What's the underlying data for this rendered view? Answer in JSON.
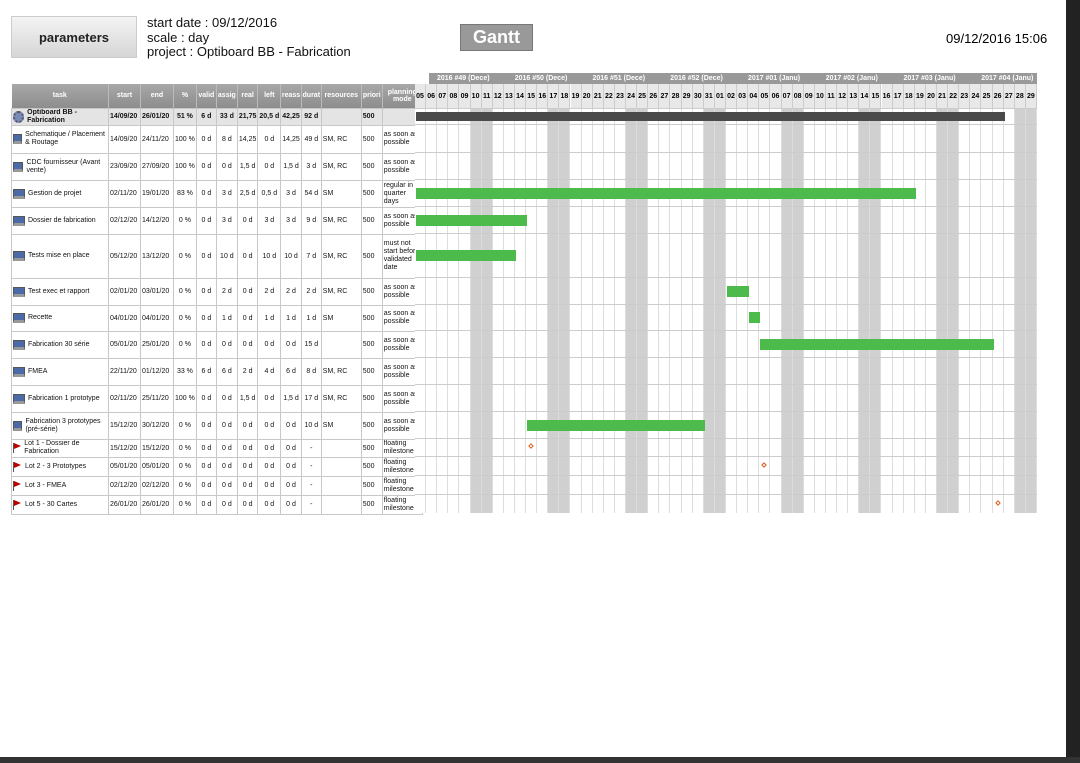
{
  "header": {
    "parameters_label": "parameters",
    "start_date": "start date : 09/12/2016",
    "scale": "scale : day",
    "project": "project : Optiboard BB - Fabrication",
    "gantt_label": "Gantt",
    "datetime": "09/12/2016 15:06"
  },
  "columns": [
    "task",
    "start",
    "end",
    "%",
    "valid",
    "assig",
    "real",
    "left",
    "reass",
    "durat",
    "resources",
    "priori",
    "planning mode"
  ],
  "weeks": [
    "2016 #49 (Dece)",
    "2016 #50 (Dece)",
    "2016 #51 (Dece)",
    "2016 #52 (Dece)",
    "2017 #01 (Janu)",
    "2017 #02 (Janu)",
    "2017 #03 (Janu)",
    "2017 #04 (Janu)"
  ],
  "days": [
    "05",
    "06",
    "07",
    "08",
    "09",
    "10",
    "11",
    "12",
    "13",
    "14",
    "15",
    "16",
    "17",
    "18",
    "19",
    "20",
    "21",
    "22",
    "23",
    "24",
    "25",
    "26",
    "27",
    "28",
    "29",
    "30",
    "31",
    "01",
    "02",
    "03",
    "04",
    "05",
    "06",
    "07",
    "08",
    "09",
    "10",
    "11",
    "12",
    "13",
    "14",
    "15",
    "16",
    "17",
    "18",
    "19",
    "20",
    "21",
    "22",
    "23",
    "24",
    "25",
    "26",
    "27",
    "28",
    "29"
  ],
  "colors": {
    "bar": "#4cbb4c",
    "summary": "#4a4a4a",
    "weekend": "#d0d0d0",
    "milestone": "#e06020"
  },
  "rows": [
    {
      "type": "summary",
      "icon": "gear-icon",
      "task": "Optiboard BB - Fabrication",
      "cells": [
        "14/09/20",
        "26/01/20",
        "51 %",
        "6 d",
        "33 d",
        "21,75",
        "20,5 d",
        "42,25",
        "92 d",
        "",
        "500",
        ""
      ],
      "bar": [
        0,
        53
      ]
    },
    {
      "type": "task",
      "icon": "computer-icon",
      "task": "Schematique / Placement & Routage",
      "cells": [
        "14/09/20",
        "24/11/20",
        "100 %",
        "0 d",
        "8 d",
        "14,25",
        "0 d",
        "14,25",
        "49 d",
        "SM, RC",
        "500",
        "as soon as possible"
      ]
    },
    {
      "type": "task",
      "icon": "computer-icon",
      "task": "CDC fournisseur (Avant vente)",
      "cells": [
        "23/09/20",
        "27/09/20",
        "100 %",
        "0 d",
        "0 d",
        "1,5 d",
        "0 d",
        "1,5 d",
        "3 d",
        "SM, RC",
        "500",
        "as soon as possible"
      ]
    },
    {
      "type": "task",
      "icon": "computer-icon",
      "task": "Gestion de projet",
      "cells": [
        "02/11/20",
        "19/01/20",
        "83 %",
        "0 d",
        "3 d",
        "2,5 d",
        "0,5 d",
        "3 d",
        "54 d",
        "SM",
        "500",
        "regular in quarter days"
      ],
      "bar": [
        0,
        45
      ]
    },
    {
      "type": "task",
      "icon": "computer-icon",
      "task": "Dossier de fabrication",
      "cells": [
        "02/12/20",
        "14/12/20",
        "0 %",
        "0 d",
        "3 d",
        "0 d",
        "3 d",
        "3 d",
        "9 d",
        "SM, RC",
        "500",
        "as soon as possible"
      ],
      "bar": [
        0,
        10
      ]
    },
    {
      "type": "task",
      "icon": "computer-icon",
      "task": "Tests mise en place",
      "cells": [
        "05/12/20",
        "13/12/20",
        "0 %",
        "0 d",
        "10 d",
        "0 d",
        "10 d",
        "10 d",
        "7 d",
        "SM, RC",
        "500",
        "must not start before validated date"
      ],
      "bar": [
        0,
        9
      ]
    },
    {
      "type": "task",
      "icon": "computer-icon",
      "task": "Test exec et rapport",
      "cells": [
        "02/01/20",
        "03/01/20",
        "0 %",
        "0 d",
        "2 d",
        "0 d",
        "2 d",
        "2 d",
        "2 d",
        "SM, RC",
        "500",
        "as soon as possible"
      ],
      "bar": [
        28,
        30
      ]
    },
    {
      "type": "task",
      "icon": "computer-icon",
      "task": "Recette",
      "cells": [
        "04/01/20",
        "04/01/20",
        "0 %",
        "0 d",
        "1 d",
        "0 d",
        "1 d",
        "1 d",
        "1 d",
        "SM",
        "500",
        "as soon as possible"
      ],
      "bar": [
        30,
        31
      ]
    },
    {
      "type": "task",
      "icon": "computer-icon",
      "task": "Fabrication 30 série",
      "cells": [
        "05/01/20",
        "25/01/20",
        "0 %",
        "0 d",
        "0 d",
        "0 d",
        "0 d",
        "0 d",
        "15 d",
        "",
        "500",
        "as soon as possible"
      ],
      "bar": [
        31,
        52
      ]
    },
    {
      "type": "task",
      "icon": "computer-icon",
      "task": "FMEA",
      "cells": [
        "22/11/20",
        "01/12/20",
        "33 %",
        "6 d",
        "6 d",
        "2 d",
        "4 d",
        "6 d",
        "8 d",
        "SM, RC",
        "500",
        "as soon as possible"
      ]
    },
    {
      "type": "task",
      "icon": "computer-icon",
      "task": "Fabrication 1 prototype",
      "cells": [
        "02/11/20",
        "25/11/20",
        "100 %",
        "0 d",
        "0 d",
        "1,5 d",
        "0 d",
        "1,5 d",
        "17 d",
        "SM, RC",
        "500",
        "as soon as possible"
      ]
    },
    {
      "type": "task",
      "icon": "computer-icon",
      "task": "Fabrication 3 prototypes (pré-série)",
      "cells": [
        "15/12/20",
        "30/12/20",
        "0 %",
        "0 d",
        "0 d",
        "0 d",
        "0 d",
        "0 d",
        "10 d",
        "SM",
        "500",
        "as soon as possible"
      ],
      "bar": [
        10,
        26
      ]
    },
    {
      "type": "milestone",
      "icon": "flag-icon",
      "task": "Lot 1 - Dossier de Fabrication",
      "cells": [
        "15/12/20",
        "15/12/20",
        "0 %",
        "0 d",
        "0 d",
        "0 d",
        "0 d",
        "0 d",
        "-",
        "",
        "500",
        "floating milestone"
      ],
      "ms": 10
    },
    {
      "type": "milestone",
      "icon": "flag-icon",
      "task": "Lot 2 - 3 Prototypes",
      "cells": [
        "05/01/20",
        "05/01/20",
        "0 %",
        "0 d",
        "0 d",
        "0 d",
        "0 d",
        "0 d",
        "-",
        "",
        "500",
        "floating milestone"
      ],
      "ms": 31
    },
    {
      "type": "milestone",
      "icon": "flag-icon",
      "task": "Lot 3 - FMEA",
      "cells": [
        "02/12/20",
        "02/12/20",
        "0 %",
        "0 d",
        "0 d",
        "0 d",
        "0 d",
        "0 d",
        "-",
        "",
        "500",
        "floating milestone"
      ]
    },
    {
      "type": "milestone",
      "icon": "flag-icon",
      "task": "Lot 5 - 30 Cartes",
      "cells": [
        "26/01/20",
        "26/01/20",
        "0 %",
        "0 d",
        "0 d",
        "0 d",
        "0 d",
        "0 d",
        "-",
        "",
        "500",
        "floating milestone"
      ],
      "ms": 52
    }
  ]
}
